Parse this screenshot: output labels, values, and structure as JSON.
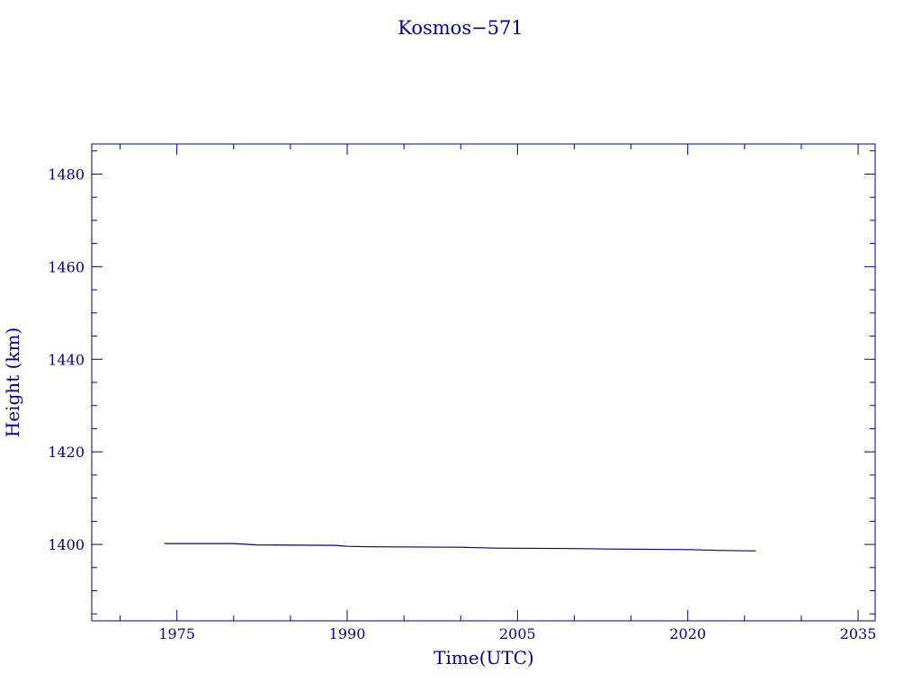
{
  "chart_data": {
    "type": "line",
    "title": "Kosmos−571",
    "xlabel": "Time(UTC)",
    "ylabel": "Height (km)",
    "xlim": [
      1967.5,
      2036.5
    ],
    "ylim": [
      1383.5,
      1486.5
    ],
    "x_ticks": [
      1975,
      1990,
      2005,
      2020,
      2035
    ],
    "x_tick_labels": [
      "1975",
      "1990",
      "2005",
      "2020",
      "2035"
    ],
    "y_ticks": [
      1400,
      1420,
      1440,
      1460,
      1480
    ],
    "y_tick_labels": [
      "1400",
      "1420",
      "1440",
      "1460",
      "1480"
    ],
    "grid": false,
    "colors": {
      "axis": "#00008b",
      "series": "#00008b"
    },
    "series": [
      {
        "values": [
          {
            "x": 1973.9,
            "y": 1400.2
          },
          {
            "x": 1980.0,
            "y": 1400.2
          },
          {
            "x": 1982.0,
            "y": 1399.9
          },
          {
            "x": 1989.0,
            "y": 1399.8
          },
          {
            "x": 1990.0,
            "y": 1399.6
          },
          {
            "x": 1992.0,
            "y": 1399.5
          },
          {
            "x": 2000.0,
            "y": 1399.4
          },
          {
            "x": 2003.0,
            "y": 1399.2
          },
          {
            "x": 2010.0,
            "y": 1399.1
          },
          {
            "x": 2013.0,
            "y": 1399.0
          },
          {
            "x": 2020.0,
            "y": 1398.9
          },
          {
            "x": 2023.0,
            "y": 1398.7
          },
          {
            "x": 2026.0,
            "y": 1398.6
          }
        ]
      }
    ]
  }
}
